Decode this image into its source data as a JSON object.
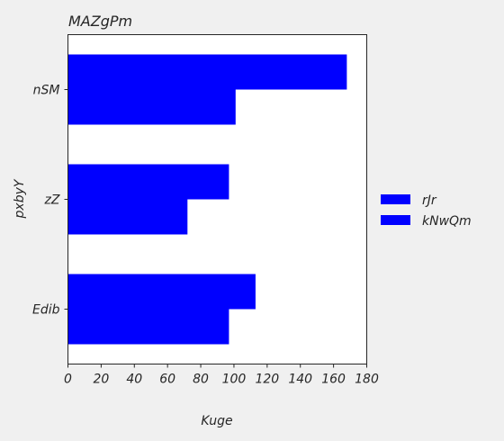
{
  "chart_data": {
    "type": "bar",
    "orientation": "horizontal",
    "title": "MAZgPm",
    "xlabel": "Kuge",
    "ylabel": "pxbyY",
    "categories": [
      "nSM",
      "zZ",
      "Edib"
    ],
    "series": [
      {
        "name": "rJr",
        "values": [
          168,
          97,
          113
        ],
        "color": "#0000ff"
      },
      {
        "name": "kNwQm",
        "values": [
          101,
          72,
          97
        ],
        "color": "#0000ff"
      }
    ],
    "xlim": [
      0,
      180
    ],
    "xticks": [
      0,
      20,
      40,
      60,
      80,
      100,
      120,
      140,
      160,
      180
    ],
    "grid": false,
    "legend": "right"
  }
}
